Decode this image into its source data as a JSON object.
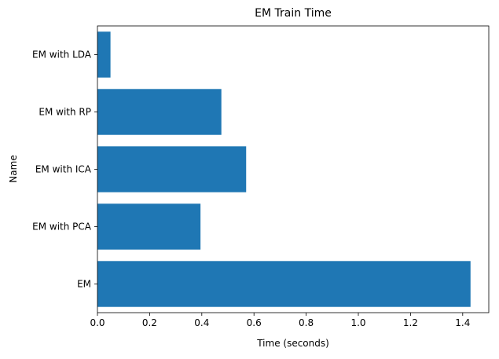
{
  "chart_data": {
    "type": "bar",
    "orientation": "horizontal",
    "title": "EM Train Time",
    "xlabel": "Time (seconds)",
    "ylabel": "Name",
    "categories": [
      "EM",
      "EM with PCA",
      "EM with ICA",
      "EM with RP",
      "EM with LDA"
    ],
    "values": [
      1.43,
      0.395,
      0.57,
      0.475,
      0.05
    ],
    "xlim": [
      0,
      1.5
    ],
    "xticks": [
      0.0,
      0.2,
      0.4,
      0.6,
      0.8,
      1.0,
      1.2,
      1.4
    ],
    "xtick_labels": [
      "0.0",
      "0.2",
      "0.4",
      "0.6",
      "0.8",
      "1.0",
      "1.2",
      "1.4"
    ],
    "grid": false,
    "colors": {
      "bar": "#1f77b4",
      "axis": "#000000"
    }
  }
}
